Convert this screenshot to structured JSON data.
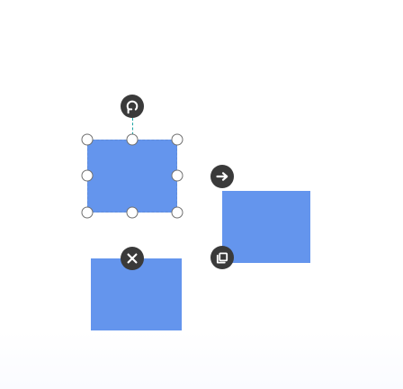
{
  "canvas": {
    "name": "diagram-canvas",
    "background": "#ffffff"
  },
  "colors": {
    "shape_fill": "#6495ed",
    "selection_outline": "#5f8bd8",
    "rotate_connector": "#1aa3a3",
    "handle_fill": "#ffffff",
    "handle_stroke": "#707070",
    "tool_button": "#3a3a3a",
    "tool_icon": "#ffffff"
  },
  "shapes": [
    {
      "name": "selected-rectangle",
      "selected": true
    },
    {
      "name": "rectangle-right",
      "selected": false
    },
    {
      "name": "rectangle-bottom",
      "selected": false
    }
  ],
  "selection": {
    "resize_handle_count": 8,
    "resize_handles": [
      "top-left",
      "top",
      "top-right",
      "left",
      "right",
      "bottom-left",
      "bottom",
      "bottom-right"
    ]
  },
  "tools": {
    "rotate": {
      "icon": "rotate-icon"
    },
    "link": {
      "icon": "arrow-right-icon"
    },
    "delete": {
      "icon": "close-icon"
    },
    "duplicate": {
      "icon": "copy-icon"
    }
  }
}
